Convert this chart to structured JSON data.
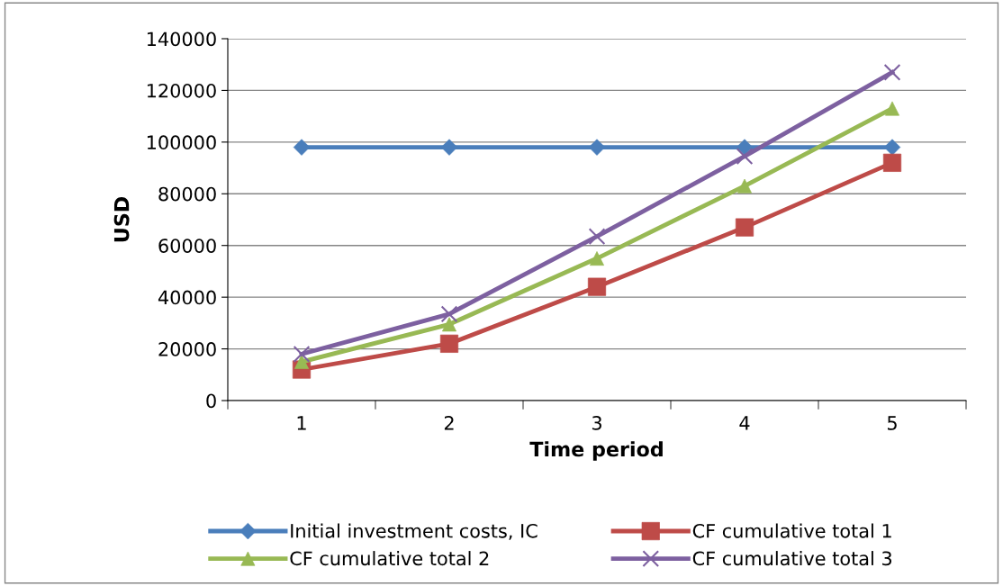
{
  "chart_data": {
    "type": "line",
    "xlabel": "Time period",
    "ylabel": "USD",
    "categories": [
      "1",
      "2",
      "3",
      "4",
      "5"
    ],
    "ylim": [
      0,
      140000
    ],
    "yticks": [
      0,
      20000,
      40000,
      60000,
      80000,
      100000,
      120000,
      140000
    ],
    "grid": "y",
    "legend": "bottom",
    "line_style": "solid",
    "series": [
      {
        "name": "Initial investment costs, IC",
        "color": "#4a7ebb",
        "marker": "diamond",
        "values": [
          98000,
          98000,
          98000,
          98000,
          98000
        ]
      },
      {
        "name": "CF cumulative total 1",
        "color": "#be4b48",
        "marker": "square",
        "values": [
          12000,
          22000,
          44000,
          67000,
          92000
        ]
      },
      {
        "name": "CF cumulative total 2",
        "color": "#98b954",
        "marker": "triangle",
        "values": [
          15000,
          29500,
          55000,
          83000,
          113000
        ]
      },
      {
        "name": "CF cumulative total 3",
        "color": "#7d60a0",
        "marker": "cross",
        "values": [
          18000,
          33500,
          63500,
          94500,
          127000
        ]
      }
    ]
  }
}
